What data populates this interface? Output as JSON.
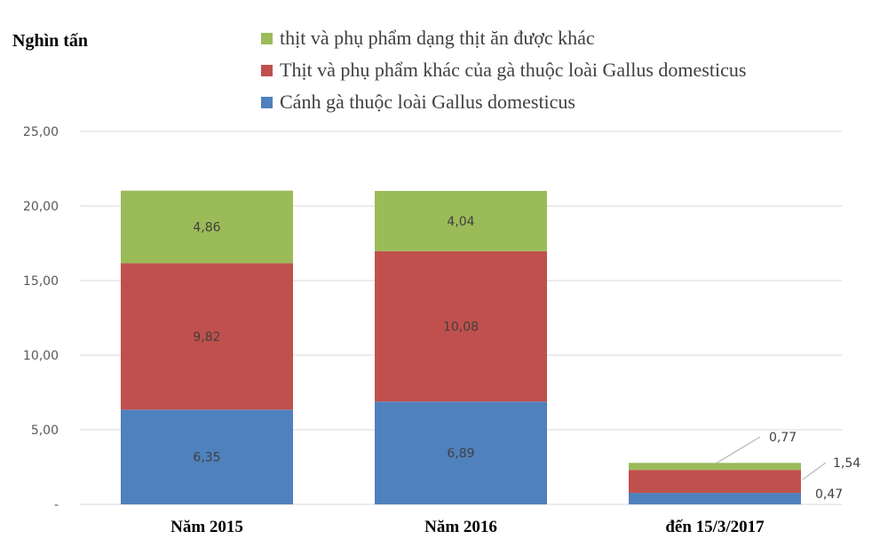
{
  "chart_data": {
    "type": "bar",
    "stacked": true,
    "unit_label": "Nghìn tấn",
    "categories": [
      "Năm 2015",
      "Năm 2016",
      "đến 15/3/2017"
    ],
    "series": [
      {
        "name": "Cánh gà thuộc loài Gallus domesticus",
        "color": "#4f81bd",
        "values": [
          6.35,
          6.89,
          0.77
        ],
        "labels": [
          "6,35",
          "6,89",
          "0,77"
        ]
      },
      {
        "name": "Thịt và phụ phẩm khác của gà thuộc loài  Gallus domesticus",
        "color": "#c0504d",
        "values": [
          9.82,
          10.08,
          1.54
        ],
        "labels": [
          "9,82",
          "10,08",
          "1,54"
        ]
      },
      {
        "name": "thịt và phụ phẩm dạng thịt ăn được khác",
        "color": "#9bbb59",
        "values": [
          4.86,
          4.04,
          0.47
        ],
        "labels": [
          "4,86",
          "4,04",
          "0,47"
        ]
      }
    ],
    "legend_order": [
      2,
      1,
      0
    ],
    "legend_position": "top",
    "yticks": [
      0,
      5,
      10,
      15,
      20,
      25
    ],
    "ytick_labels": [
      "-",
      "5,00",
      "10,00",
      "15,00",
      "20,00",
      "25,00"
    ],
    "ylim": [
      0,
      25
    ],
    "grid": true
  }
}
